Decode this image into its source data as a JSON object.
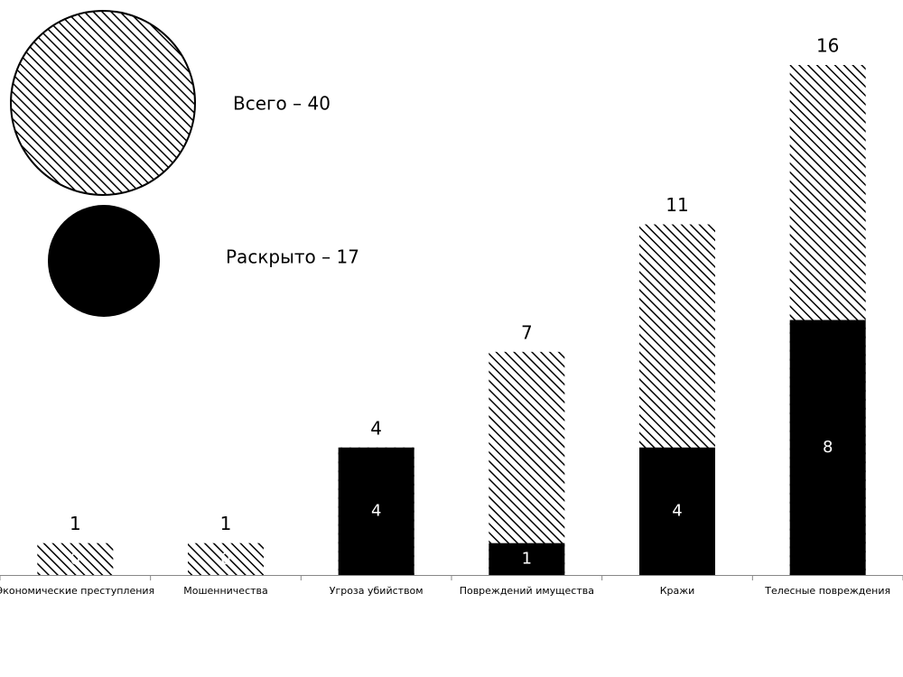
{
  "chart_data": {
    "type": "overlap-bar",
    "categories": [
      "Экономические преступления",
      "Мошенничества",
      "Угроза убийством",
      "Повреждений имущества",
      "Кражи",
      "Телесные повреждения"
    ],
    "series": [
      {
        "name": "Всего – 40",
        "color": "#000000",
        "pattern": "hatch",
        "values": [
          1,
          1,
          4,
          7,
          11,
          16
        ]
      },
      {
        "name": "Раскрыто – 17",
        "color": "#000000",
        "pattern": "solid",
        "values": [
          0,
          0,
          4,
          1,
          4,
          8
        ]
      }
    ]
  }
}
